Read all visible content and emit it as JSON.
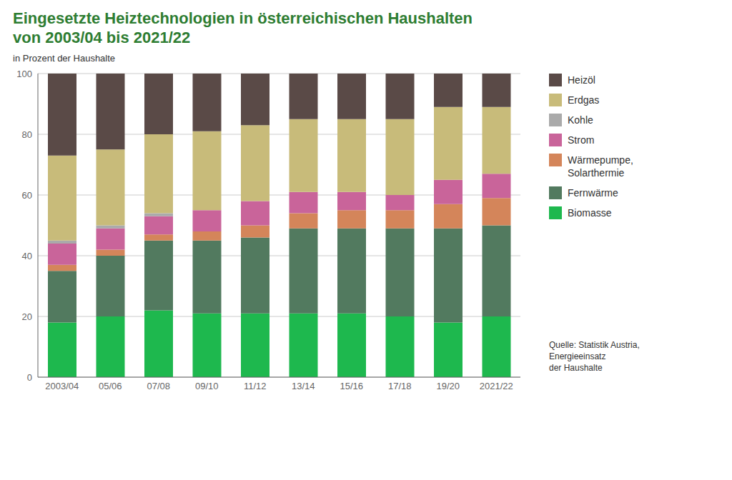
{
  "chart_data": {
    "type": "bar",
    "stacked": true,
    "title": "Eingesetzte Heiztechnologien in österreichischen Haushalten\nvon 2003/04 bis 2021/22",
    "subtitle": "in Prozent der Haushalte",
    "source": "Quelle: Statistik Austria,\nEnergieeinsatz\nder Haushalte",
    "categories": [
      "2003/04",
      "05/06",
      "07/08",
      "09/10",
      "11/12",
      "13/14",
      "15/16",
      "17/18",
      "19/20",
      "2021/22"
    ],
    "series": [
      {
        "name": "Biomasse",
        "color": "#1eb84e",
        "values": [
          18,
          20,
          22,
          21,
          21,
          21,
          21,
          20,
          18,
          20
        ]
      },
      {
        "name": "Fernwärme",
        "color": "#527a5f",
        "values": [
          17,
          20,
          23,
          24,
          25,
          28,
          28,
          29,
          31,
          30
        ]
      },
      {
        "name": "Wärmepumpe,\nSolarthermie",
        "color": "#d4855a",
        "values": [
          2,
          2,
          2,
          3,
          4,
          5,
          6,
          6,
          8,
          9
        ]
      },
      {
        "name": "Strom",
        "color": "#c9649a",
        "values": [
          7,
          7,
          6,
          7,
          8,
          7,
          6,
          5,
          8,
          8
        ]
      },
      {
        "name": "Kohle",
        "color": "#aaaaaa",
        "values": [
          1,
          1,
          1,
          0,
          0,
          0,
          0,
          0,
          0,
          0
        ]
      },
      {
        "name": "Erdgas",
        "color": "#c8bb7a",
        "values": [
          28,
          25,
          26,
          26,
          25,
          24,
          24,
          25,
          24,
          22
        ]
      },
      {
        "name": "Heizöl",
        "color": "#5a4a47",
        "values": [
          27,
          25,
          20,
          19,
          17,
          15,
          15,
          15,
          11,
          11
        ]
      }
    ],
    "ylim": [
      0,
      100
    ],
    "yticks": [
      0,
      20,
      40,
      60,
      80,
      100
    ],
    "grid": true,
    "legend": "right"
  }
}
